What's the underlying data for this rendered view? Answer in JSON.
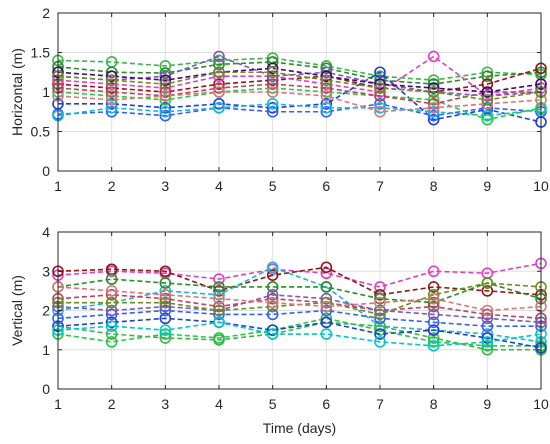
{
  "chart_data": [
    {
      "type": "line",
      "xlabel": "",
      "ylabel": "Horizontal (m)",
      "xlim": [
        1,
        10
      ],
      "ylim": [
        0,
        2
      ],
      "xticks": [
        1,
        2,
        3,
        4,
        5,
        6,
        7,
        8,
        9,
        10
      ],
      "yticks": [
        0,
        0.5,
        1,
        1.5,
        2
      ],
      "ytick_labels": [
        "0",
        "0.5",
        "1",
        "1.5",
        "2"
      ],
      "grid": true,
      "marker": "open-circle",
      "line_style": "dashed",
      "x": [
        1,
        2,
        3,
        4,
        5,
        6,
        7,
        8,
        9,
        10
      ],
      "series": [
        {
          "color": "#3cb44b",
          "values": [
            1.4,
            1.38,
            1.33,
            1.4,
            1.43,
            1.33,
            1.2,
            1.15,
            1.25,
            1.22
          ]
        },
        {
          "color": "#2a8c2a",
          "values": [
            1.32,
            1.25,
            1.24,
            1.35,
            1.38,
            1.3,
            1.15,
            1.1,
            1.2,
            1.25
          ]
        },
        {
          "color": "#8b1a1a",
          "values": [
            1.1,
            1.05,
            1.0,
            1.1,
            1.15,
            1.2,
            1.05,
            1.0,
            1.1,
            1.3
          ]
        },
        {
          "color": "#e040c0",
          "values": [
            1.15,
            1.1,
            1.05,
            1.2,
            1.2,
            1.1,
            1.0,
            1.45,
            0.95,
            1.05
          ]
        },
        {
          "color": "#1f3fd0",
          "values": [
            0.85,
            0.85,
            0.8,
            0.85,
            0.8,
            0.85,
            1.25,
            0.65,
            0.78,
            0.62
          ]
        },
        {
          "color": "#3060ff",
          "values": [
            0.72,
            0.75,
            0.7,
            0.8,
            0.75,
            0.75,
            0.85,
            0.7,
            0.8,
            0.75
          ]
        },
        {
          "color": "#17b8d8",
          "values": [
            0.7,
            0.8,
            0.75,
            0.8,
            0.85,
            0.8,
            0.8,
            0.75,
            0.7,
            0.78
          ]
        },
        {
          "color": "#22cc44",
          "values": [
            1.0,
            0.95,
            0.9,
            1.0,
            1.05,
            1.0,
            0.95,
            0.9,
            0.65,
            0.8
          ]
        },
        {
          "color": "#c04060",
          "values": [
            1.05,
            1.0,
            0.95,
            1.05,
            1.1,
            1.05,
            0.95,
            0.85,
            1.0,
            1.0
          ]
        },
        {
          "color": "#7a5ab8",
          "values": [
            1.2,
            1.15,
            1.2,
            1.45,
            1.2,
            1.25,
            1.1,
            1.0,
            0.95,
            1.0
          ]
        },
        {
          "color": "#d27a7a",
          "values": [
            0.95,
            0.9,
            0.95,
            1.0,
            1.0,
            0.95,
            0.75,
            0.8,
            0.85,
            0.9
          ]
        },
        {
          "color": "#4b0082",
          "values": [
            1.25,
            1.2,
            1.15,
            1.25,
            1.3,
            1.2,
            1.1,
            1.05,
            1.0,
            1.1
          ]
        },
        {
          "color": "#6b8e23",
          "values": [
            1.2,
            1.15,
            1.1,
            1.25,
            1.25,
            1.15,
            1.05,
            1.0,
            0.9,
            1.0
          ]
        }
      ]
    },
    {
      "type": "line",
      "xlabel": "Time (days)",
      "ylabel": "Vertical (m)",
      "xlim": [
        1,
        10
      ],
      "ylim": [
        0,
        4
      ],
      "xticks": [
        1,
        2,
        3,
        4,
        5,
        6,
        7,
        8,
        9,
        10
      ],
      "yticks": [
        0,
        1,
        2,
        3,
        4
      ],
      "ytick_labels": [
        "0",
        "1",
        "2",
        "3",
        "4"
      ],
      "grid": true,
      "marker": "open-circle",
      "line_style": "dashed",
      "x": [
        1,
        2,
        3,
        4,
        5,
        6,
        7,
        8,
        9,
        10
      ],
      "series": [
        {
          "color": "#e040c0",
          "values": [
            2.9,
            3.0,
            2.95,
            2.8,
            3.05,
            2.95,
            2.6,
            3.0,
            2.95,
            3.2
          ]
        },
        {
          "color": "#8b1a1a",
          "values": [
            3.0,
            3.05,
            3.0,
            2.5,
            2.9,
            3.1,
            2.4,
            2.6,
            2.5,
            2.4
          ]
        },
        {
          "color": "#17b8d8",
          "values": [
            2.0,
            2.2,
            2.5,
            2.4,
            3.1,
            2.6,
            1.6,
            1.5,
            1.4,
            1.2
          ]
        },
        {
          "color": "#2a8c2a",
          "values": [
            2.6,
            2.8,
            2.7,
            2.6,
            2.6,
            2.6,
            2.3,
            2.2,
            2.7,
            2.3
          ]
        },
        {
          "color": "#22cc44",
          "values": [
            1.4,
            1.2,
            1.4,
            1.3,
            1.5,
            1.8,
            1.5,
            1.2,
            1.1,
            1.1
          ]
        },
        {
          "color": "#3cb44b",
          "values": [
            1.6,
            1.4,
            1.3,
            1.25,
            1.4,
            1.7,
            1.6,
            1.3,
            1.0,
            1.0
          ]
        },
        {
          "color": "#1f3fd0",
          "values": [
            1.6,
            1.7,
            1.8,
            1.7,
            1.5,
            1.7,
            1.4,
            1.5,
            1.3,
            1.05
          ]
        },
        {
          "color": "#3060ff",
          "values": [
            1.8,
            1.9,
            2.0,
            1.9,
            1.9,
            2.0,
            1.8,
            1.7,
            1.6,
            1.6
          ]
        },
        {
          "color": "#c04060",
          "values": [
            2.3,
            2.4,
            2.3,
            2.1,
            2.3,
            2.2,
            2.0,
            2.1,
            1.9,
            1.8
          ]
        },
        {
          "color": "#7a5ab8",
          "values": [
            2.1,
            2.0,
            2.1,
            2.0,
            2.4,
            2.3,
            2.0,
            1.9,
            1.8,
            1.7
          ]
        },
        {
          "color": "#00c8c8",
          "values": [
            1.5,
            1.6,
            1.5,
            1.7,
            1.4,
            1.4,
            1.2,
            1.1,
            1.2,
            1.4
          ]
        },
        {
          "color": "#6b8e23",
          "values": [
            2.2,
            2.2,
            2.2,
            2.0,
            2.1,
            2.2,
            1.9,
            2.4,
            2.7,
            2.6
          ]
        },
        {
          "color": "#d27a7a",
          "values": [
            2.6,
            2.5,
            2.4,
            2.3,
            2.2,
            2.1,
            2.2,
            2.3,
            2.0,
            2.1
          ]
        }
      ]
    }
  ]
}
